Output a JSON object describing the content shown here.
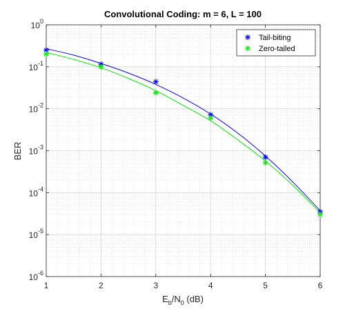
{
  "chart_data": {
    "type": "line",
    "title": "Convolutional Coding: m = 6, L = 100",
    "xlabel": {
      "main": "E",
      "sub1": "b",
      "mid": "/N",
      "sub2": "0",
      "tail": " (dB)"
    },
    "ylabel": "BER",
    "xlim": [
      1,
      6
    ],
    "ylim": [
      1e-06,
      1
    ],
    "yscale": "log",
    "grid": true,
    "minor_grid": true,
    "legend_position": "top-right",
    "x_ticks": [
      {
        "value": 1,
        "label": "1"
      },
      {
        "value": 2,
        "label": "2"
      },
      {
        "value": 3,
        "label": "3"
      },
      {
        "value": 4,
        "label": "4"
      },
      {
        "value": 5,
        "label": "5"
      },
      {
        "value": 6,
        "label": "6"
      }
    ],
    "y_ticks": [
      {
        "value": 1,
        "base": "10",
        "exp": "0"
      },
      {
        "value": 0.1,
        "base": "10",
        "exp": "-1"
      },
      {
        "value": 0.01,
        "base": "10",
        "exp": "-2"
      },
      {
        "value": 0.001,
        "base": "10",
        "exp": "-3"
      },
      {
        "value": 0.0001,
        "base": "10",
        "exp": "-4"
      },
      {
        "value": 1e-05,
        "base": "10",
        "exp": "-5"
      },
      {
        "value": 1e-06,
        "base": "10",
        "exp": "-6"
      }
    ],
    "series": [
      {
        "name": "Tail-biting",
        "color": "#0000ff",
        "marker": "*",
        "points": [
          {
            "x": 1,
            "y": 0.25
          },
          {
            "x": 2,
            "y": 0.115
          },
          {
            "x": 3,
            "y": 0.044
          },
          {
            "x": 4,
            "y": 0.0072
          },
          {
            "x": 5,
            "y": 0.0007
          },
          {
            "x": 6,
            "y": 3.5e-05
          }
        ],
        "curve": [
          {
            "x": 1,
            "y": 0.27
          },
          {
            "x": 1.5,
            "y": 0.19
          },
          {
            "x": 2,
            "y": 0.12
          },
          {
            "x": 2.5,
            "y": 0.071
          },
          {
            "x": 3,
            "y": 0.038
          },
          {
            "x": 3.5,
            "y": 0.018
          },
          {
            "x": 4,
            "y": 0.0075
          },
          {
            "x": 4.5,
            "y": 0.0026
          },
          {
            "x": 5,
            "y": 0.00075
          },
          {
            "x": 5.5,
            "y": 0.00018
          },
          {
            "x": 6,
            "y": 3.7e-05
          }
        ]
      },
      {
        "name": "Zero-tailed",
        "color": "#00ee00",
        "marker": "*",
        "points": [
          {
            "x": 1,
            "y": 0.2
          },
          {
            "x": 2,
            "y": 0.1
          },
          {
            "x": 3,
            "y": 0.024
          },
          {
            "x": 4,
            "y": 0.006
          },
          {
            "x": 5,
            "y": 0.00052
          },
          {
            "x": 6,
            "y": 3e-05
          }
        ],
        "curve": [
          {
            "x": 1,
            "y": 0.22
          },
          {
            "x": 1.5,
            "y": 0.15
          },
          {
            "x": 2,
            "y": 0.095
          },
          {
            "x": 2.5,
            "y": 0.053
          },
          {
            "x": 3,
            "y": 0.027
          },
          {
            "x": 3.5,
            "y": 0.012
          },
          {
            "x": 4,
            "y": 0.0052
          },
          {
            "x": 4.5,
            "y": 0.0018
          },
          {
            "x": 5,
            "y": 0.00057
          },
          {
            "x": 5.5,
            "y": 0.00015
          },
          {
            "x": 6,
            "y": 3.3e-05
          }
        ]
      }
    ]
  }
}
